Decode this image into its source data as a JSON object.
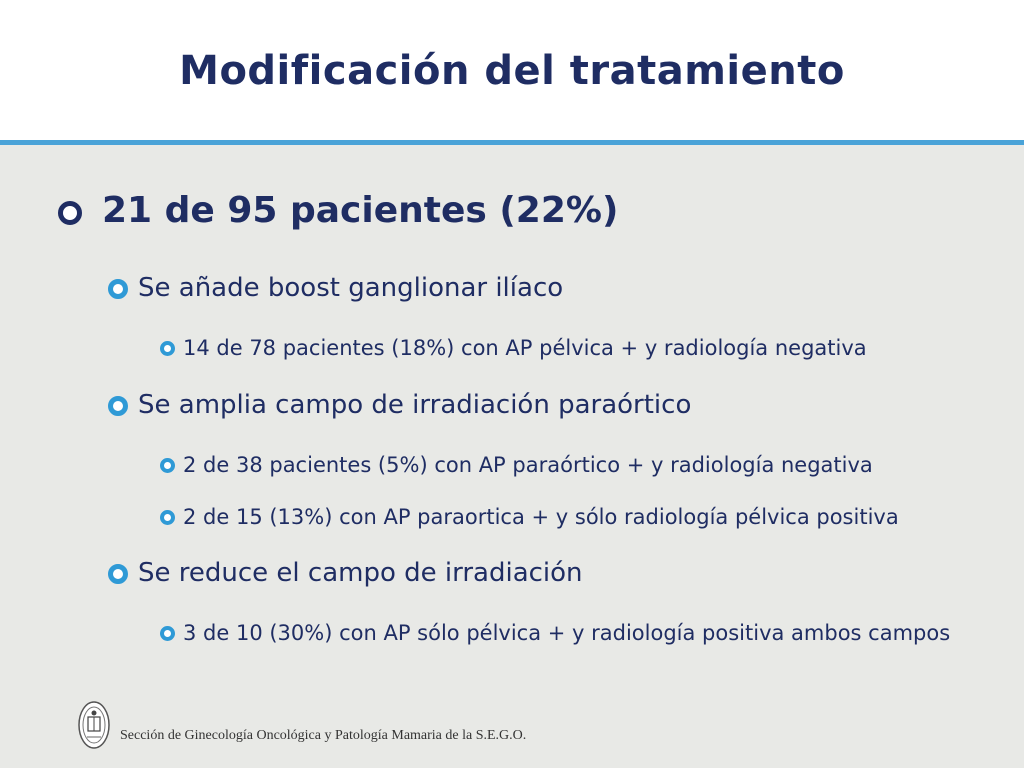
{
  "slide": {
    "title": "Modificación del tratamiento"
  },
  "main_bullet": "21 de 95 pacientes (22%)",
  "sections": [
    {
      "label": "Se añade boost ganglionar ilíaco",
      "items": [
        "14 de 78 pacientes (18%) con AP pélvica + y radiología negativa"
      ]
    },
    {
      "label": "Se amplia campo de irradiación paraórtico",
      "items": [
        "2 de 38 pacientes (5%) con AP paraórtico + y radiología negativa",
        "2 de 15 (13%) con AP paraortica + y sólo radiología pélvica positiva"
      ]
    },
    {
      "label": "Se reduce el campo de irradiación",
      "items": [
        "3 de 10 (30%) con AP sólo pélvica + y radiología positiva ambos campos"
      ]
    }
  ],
  "footer": {
    "text": "Sección de Ginecología Oncológica y Patología Mamaria de la S.E.G.O."
  },
  "colors": {
    "title": "#1f2d63",
    "accent": "#4aa3d8",
    "background": "#e8e9e6",
    "bullet": "#2f9ad6"
  },
  "icons": {
    "main_bullet": "ring-bullet-icon",
    "sub_bullet": "ring-bullet-icon",
    "footer_logo": "sego-seal-icon"
  }
}
